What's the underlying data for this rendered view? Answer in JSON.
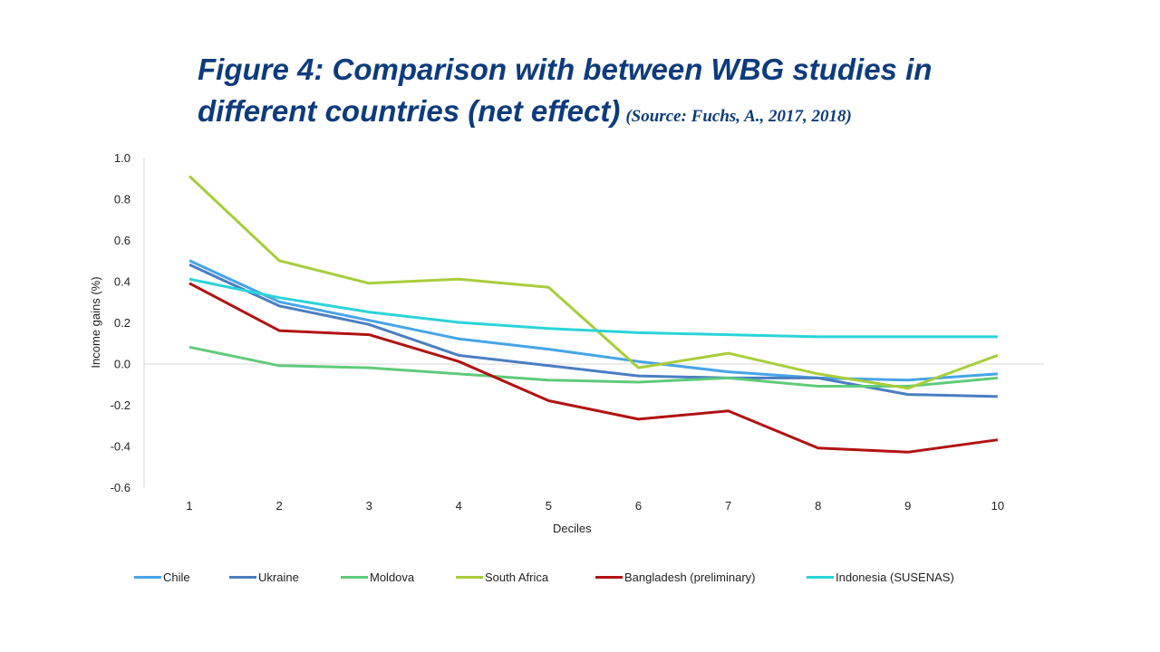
{
  "title": {
    "line1": "Figure 4: Comparison with between WBG studies in",
    "line2": "different countries (net effect)",
    "source": "(Source: Fuchs, A., 2017, 2018)"
  },
  "chart_data": {
    "type": "line",
    "xlabel": "Deciles",
    "ylabel": "Income gains (%)",
    "categories": [
      "1",
      "2",
      "3",
      "4",
      "5",
      "6",
      "7",
      "8",
      "9",
      "10"
    ],
    "ylim": [
      -0.6,
      1.0
    ],
    "yticks": [
      "1.0",
      "0.8",
      "0.6",
      "0.4",
      "0.2",
      "0.0",
      "-0.2",
      "-0.4",
      "-0.6"
    ],
    "ytick_values": [
      1.0,
      0.8,
      0.6,
      0.4,
      0.2,
      0.0,
      -0.2,
      -0.4,
      -0.6
    ],
    "legend_position": "bottom",
    "series": [
      {
        "name": "Chile",
        "color": "#45a5e8",
        "values": [
          0.5,
          0.3,
          0.21,
          0.12,
          0.07,
          0.01,
          -0.04,
          -0.07,
          -0.08,
          -0.05
        ]
      },
      {
        "name": "Ukraine",
        "color": "#4a7ec1",
        "values": [
          0.48,
          0.28,
          0.19,
          0.04,
          -0.01,
          -0.06,
          -0.07,
          -0.07,
          -0.15,
          -0.16
        ]
      },
      {
        "name": "Moldova",
        "color": "#5fcb7a",
        "values": [
          0.08,
          -0.01,
          -0.02,
          -0.05,
          -0.08,
          -0.09,
          -0.07,
          -0.11,
          -0.11,
          -0.07
        ]
      },
      {
        "name": "South Africa",
        "color": "#a8cd3a",
        "values": [
          0.91,
          0.5,
          0.39,
          0.41,
          0.37,
          -0.02,
          0.05,
          -0.05,
          -0.12,
          0.04
        ]
      },
      {
        "name": "Bangladesh (preliminary)",
        "color": "#b21212",
        "values": [
          0.39,
          0.16,
          0.14,
          0.01,
          -0.18,
          -0.27,
          -0.23,
          -0.41,
          -0.43,
          -0.37
        ]
      },
      {
        "name": "Indonesia (SUSENAS)",
        "color": "#2ad4d8",
        "values": [
          0.41,
          0.32,
          0.25,
          0.2,
          0.17,
          0.15,
          0.14,
          0.13,
          0.13,
          0.13
        ]
      }
    ]
  }
}
